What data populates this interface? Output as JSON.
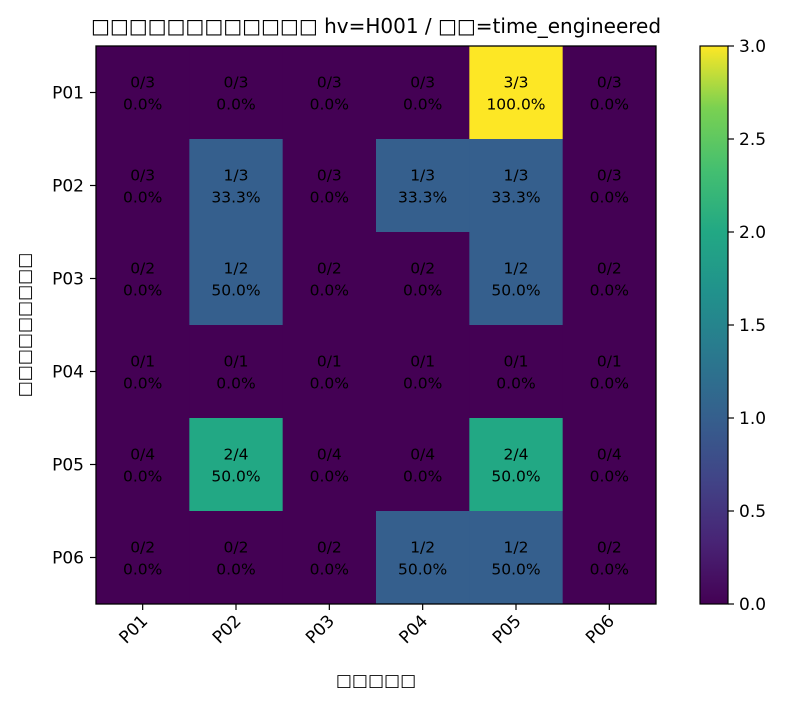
{
  "chart_data": {
    "type": "heatmap",
    "title": "□□□□□□□□□□□□ hv=H001 / □□=time_engineered",
    "xlabel": "□□□□□",
    "ylabel": "□□□□□□□□□",
    "x_categories": [
      "P01",
      "P02",
      "P03",
      "P04",
      "P05",
      "P06"
    ],
    "y_categories": [
      "P01",
      "P02",
      "P03",
      "P04",
      "P05",
      "P06"
    ],
    "values": [
      [
        0,
        0,
        0,
        0,
        3,
        0
      ],
      [
        0,
        1,
        0,
        1,
        1,
        0
      ],
      [
        0,
        1,
        0,
        0,
        1,
        0
      ],
      [
        0,
        0,
        0,
        0,
        0,
        0
      ],
      [
        0,
        2,
        0,
        0,
        2,
        0
      ],
      [
        0,
        0,
        0,
        1,
        1,
        0
      ]
    ],
    "cell_labels": [
      [
        "0/3\n0.0%",
        "0/3\n0.0%",
        "0/3\n0.0%",
        "0/3\n0.0%",
        "3/3\n100.0%",
        "0/3\n0.0%"
      ],
      [
        "0/3\n0.0%",
        "1/3\n33.3%",
        "0/3\n0.0%",
        "1/3\n33.3%",
        "1/3\n33.3%",
        "0/3\n0.0%"
      ],
      [
        "0/2\n0.0%",
        "1/2\n50.0%",
        "0/2\n0.0%",
        "0/2\n0.0%",
        "1/2\n50.0%",
        "0/2\n0.0%"
      ],
      [
        "0/1\n0.0%",
        "0/1\n0.0%",
        "0/1\n0.0%",
        "0/1\n0.0%",
        "0/1\n0.0%",
        "0/1\n0.0%"
      ],
      [
        "0/4\n0.0%",
        "2/4\n50.0%",
        "0/4\n0.0%",
        "0/4\n0.0%",
        "2/4\n50.0%",
        "0/4\n0.0%"
      ],
      [
        "0/2\n0.0%",
        "0/2\n0.0%",
        "0/2\n0.0%",
        "1/2\n50.0%",
        "1/2\n50.0%",
        "0/2\n0.0%"
      ]
    ],
    "colormap": "viridis",
    "colorbar": {
      "range": [
        0.0,
        3.0
      ],
      "ticks": [
        "0.0",
        "0.5",
        "1.0",
        "1.5",
        "2.0",
        "2.5",
        "3.0"
      ]
    }
  }
}
